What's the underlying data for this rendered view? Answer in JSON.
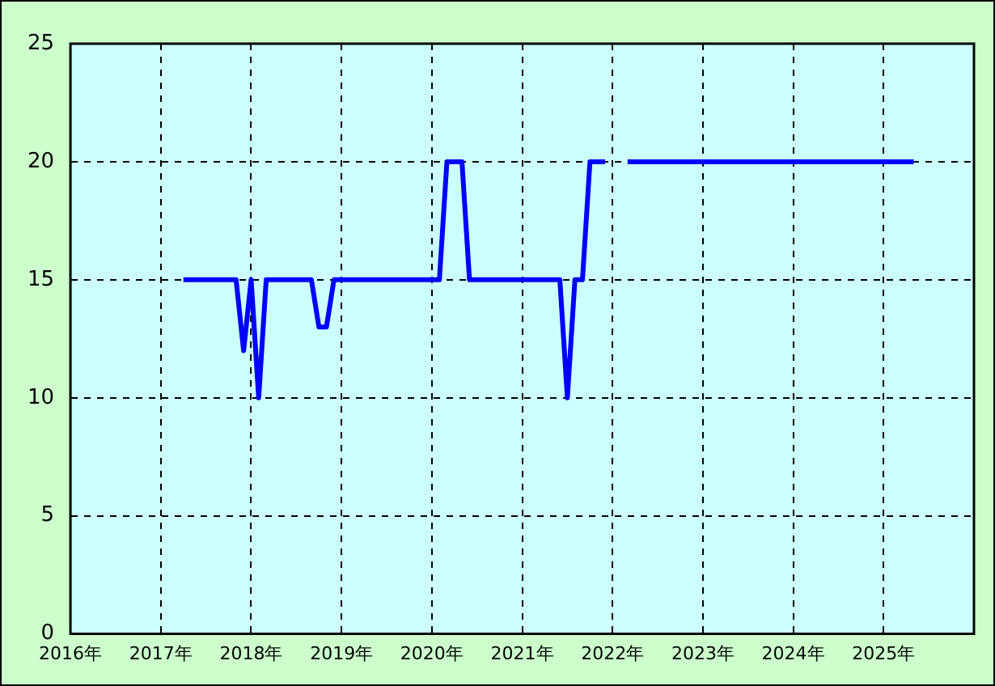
{
  "chart_data": {
    "type": "line",
    "x": [
      "2017-04",
      "2017-11",
      "2017-12",
      "2018-01",
      "2018-02",
      "2018-03",
      "2018-09",
      "2018-10",
      "2018-11",
      "2018-12",
      "2020-02",
      "2020-03",
      "2020-05",
      "2020-06",
      "2021-06",
      "2021-07",
      "2021-08",
      "2021-09",
      "2021-10",
      "2021-12",
      "2022-01",
      "2022-03",
      "2025-05"
    ],
    "series": [
      {
        "color": "#0000ff",
        "values": [
          15,
          15,
          12,
          15,
          10,
          15,
          15,
          13,
          13,
          15,
          15,
          20,
          20,
          15,
          15,
          10,
          15,
          15,
          20,
          20,
          null,
          20,
          20
        ]
      }
    ],
    "xlim": [
      "2016",
      "2026"
    ],
    "xticks": [
      {
        "value": "2016",
        "label": "2016年"
      },
      {
        "value": "2017",
        "label": "2017年"
      },
      {
        "value": "2018",
        "label": "2018年"
      },
      {
        "value": "2019",
        "label": "2019年"
      },
      {
        "value": "2020",
        "label": "2020年"
      },
      {
        "value": "2021",
        "label": "2021年"
      },
      {
        "value": "2022",
        "label": "2022年"
      },
      {
        "value": "2023",
        "label": "2023年"
      },
      {
        "value": "2024",
        "label": "2024年"
      },
      {
        "value": "2025",
        "label": "2025年"
      }
    ],
    "ylim": [
      0,
      25
    ],
    "yticks": [
      0,
      5,
      10,
      15,
      20,
      25
    ],
    "grid": true,
    "legend": false,
    "marker": "none",
    "line_style": "solid"
  }
}
